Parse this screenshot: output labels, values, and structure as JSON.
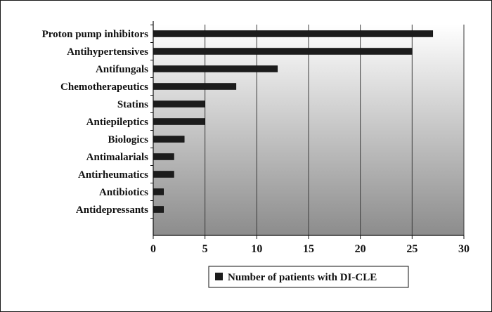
{
  "chart_data": {
    "type": "bar",
    "orientation": "horizontal",
    "categories": [
      "Proton pump inhibitors",
      "Antihypertensives",
      "Antifungals",
      "Chemotherapeutics",
      "Statins",
      "Antiepileptics",
      "Biologics",
      "Antimalarials",
      "Antirheumatics",
      "Antibiotics",
      "Antidepressants"
    ],
    "series": [
      {
        "name": "Number of patients with DI-CLE",
        "values": [
          27,
          25,
          12,
          8,
          5,
          5,
          3,
          2,
          2,
          1,
          1
        ]
      }
    ],
    "xlim": [
      0,
      30
    ],
    "xticks": [
      "0",
      "5",
      "10",
      "15",
      "20",
      "25",
      "30"
    ],
    "grid": "vertical",
    "legend_position": "bottom-center",
    "colors": {
      "bar": "#1c1c1c",
      "plot_gradient_top": "#ffffff",
      "plot_gradient_bottom": "#8c8c8c",
      "grid": "#3a3a3a"
    }
  }
}
